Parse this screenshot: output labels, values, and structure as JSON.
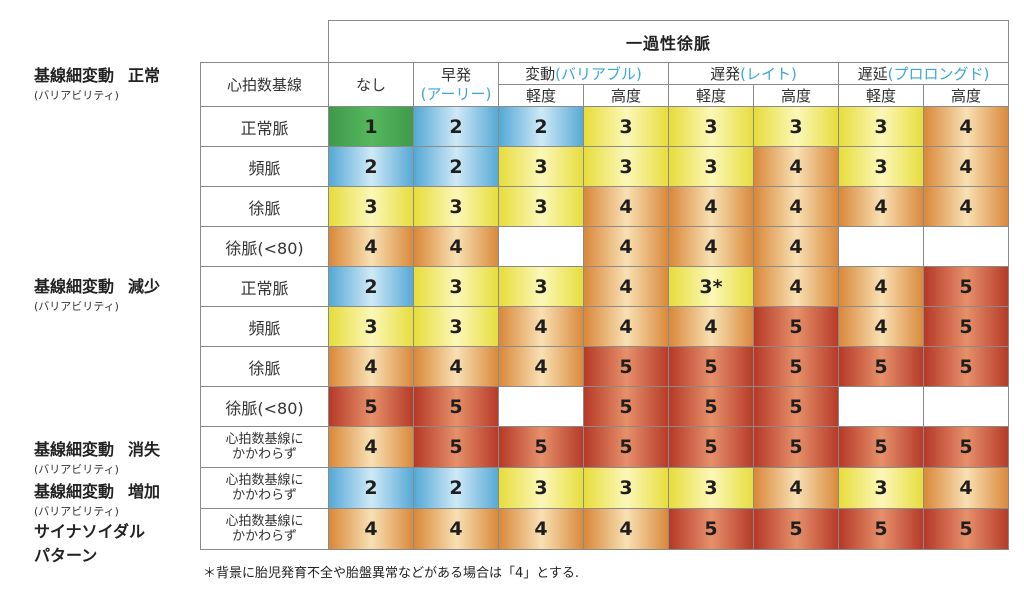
{
  "header": {
    "top_title": "一過性徐脈",
    "baseline_hr": "心拍数基線",
    "nashi": "なし",
    "early": "早発",
    "early_paren": "(アーリー)",
    "variable": "変動",
    "variable_paren": "(バリアブル)",
    "late": "遅発",
    "late_paren": "(レイト)",
    "prolonged": "遅延",
    "prolonged_paren": "(プロロングド)",
    "mild": "軽度",
    "severe": "高度"
  },
  "groups": [
    {
      "title": "基線細変動",
      "tag": "正常",
      "sub": "(バリアビリティ)"
    },
    {
      "title": "基線細変動",
      "tag": "減少",
      "sub": "(バリアビリティ)"
    },
    {
      "title": "基線細変動",
      "tag": "消失",
      "sub": "(バリアビリティ)"
    },
    {
      "title": "基線細変動",
      "tag": "増加",
      "sub": "(バリアビリティ)"
    },
    {
      "title": "サイナソイダル",
      "title2": "パターン"
    }
  ],
  "rows": [
    {
      "label": "正常脈",
      "values": [
        "1",
        "2",
        "2",
        "3",
        "3",
        "3",
        "3",
        "4"
      ]
    },
    {
      "label": "頻脈",
      "values": [
        "2",
        "2",
        "3",
        "3",
        "3",
        "4",
        "3",
        "4"
      ]
    },
    {
      "label": "徐脈",
      "values": [
        "3",
        "3",
        "3",
        "4",
        "4",
        "4",
        "4",
        "4"
      ]
    },
    {
      "label": "徐脈(<80)",
      "values": [
        "4",
        "4",
        "",
        "4",
        "4",
        "4",
        "",
        ""
      ]
    },
    {
      "label": "正常脈",
      "values": [
        "2",
        "3",
        "3",
        "4",
        "3*",
        "4",
        "4",
        "5"
      ]
    },
    {
      "label": "頻脈",
      "values": [
        "3",
        "3",
        "4",
        "4",
        "4",
        "5",
        "4",
        "5"
      ]
    },
    {
      "label": "徐脈",
      "values": [
        "4",
        "4",
        "4",
        "5",
        "5",
        "5",
        "5",
        "5"
      ]
    },
    {
      "label": "徐脈(<80)",
      "values": [
        "5",
        "5",
        "",
        "5",
        "5",
        "5",
        "",
        ""
      ]
    },
    {
      "label1": "心拍数基線に",
      "label2": "かかわらず",
      "values": [
        "4",
        "5",
        "5",
        "5",
        "5",
        "5",
        "5",
        "5"
      ]
    },
    {
      "label1": "心拍数基線に",
      "label2": "かかわらず",
      "values": [
        "2",
        "2",
        "3",
        "3",
        "3",
        "4",
        "3",
        "4"
      ]
    },
    {
      "label1": "心拍数基線に",
      "label2": "かかわらず",
      "values": [
        "4",
        "4",
        "4",
        "4",
        "5",
        "5",
        "5",
        "5"
      ]
    }
  ],
  "cell_colors": {
    "1": "#4aa853",
    "2": "#55a9d6",
    "3": "#e7dd3c",
    "4": "#d9893a",
    "5": "#b63a28"
  },
  "footnote": "＊背景に胎児発育不全や胎盤異常などがある場合は「4」とする."
}
